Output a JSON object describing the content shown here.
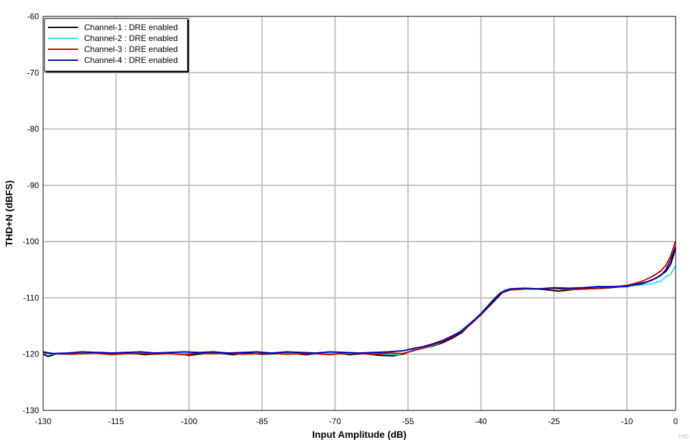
{
  "chart_data": {
    "type": "line",
    "title": "",
    "xlabel": "Input Amplitude (dB)",
    "ylabel": "THD+N (dBFS)",
    "xlim": [
      -130,
      0
    ],
    "ylim": [
      -130,
      -60
    ],
    "xticks": [
      -130,
      -115,
      -100,
      -85,
      -70,
      -55,
      -40,
      -25,
      -10,
      0
    ],
    "yticks": [
      -60,
      -70,
      -80,
      -90,
      -100,
      -110,
      -120,
      -130
    ],
    "grid": true,
    "legend_position": "top-left",
    "watermark": "THD",
    "series": [
      {
        "name": "Channel-1 : DRE enabled",
        "color": "#000000",
        "points": [
          [
            -130,
            -120.0
          ],
          [
            -129,
            -120.4
          ],
          [
            -127,
            -119.9
          ],
          [
            -124,
            -120.0
          ],
          [
            -121,
            -119.8
          ],
          [
            -118,
            -119.7
          ],
          [
            -115,
            -119.9
          ],
          [
            -112,
            -119.8
          ],
          [
            -109,
            -120.1
          ],
          [
            -106,
            -119.9
          ],
          [
            -103,
            -119.8
          ],
          [
            -100,
            -120.2
          ],
          [
            -97,
            -119.9
          ],
          [
            -94,
            -119.8
          ],
          [
            -91,
            -120.1
          ],
          [
            -88,
            -119.8
          ],
          [
            -85,
            -120.0
          ],
          [
            -82,
            -119.9
          ],
          [
            -79,
            -119.8
          ],
          [
            -76,
            -120.1
          ],
          [
            -73,
            -119.9
          ],
          [
            -70,
            -119.8
          ],
          [
            -67,
            -120.1
          ],
          [
            -64,
            -119.9
          ],
          [
            -61,
            -120.2
          ],
          [
            -58,
            -120.3
          ],
          [
            -56,
            -120.0
          ],
          [
            -54,
            -119.3
          ],
          [
            -52,
            -119.0
          ],
          [
            -50,
            -118.6
          ],
          [
            -48,
            -118.0
          ],
          [
            -46,
            -117.2
          ],
          [
            -44,
            -116.2
          ],
          [
            -42,
            -114.5
          ],
          [
            -40,
            -113.0
          ],
          [
            -38,
            -111.2
          ],
          [
            -36,
            -109.4
          ],
          [
            -35,
            -108.6
          ],
          [
            -33,
            -108.5
          ],
          [
            -30,
            -108.4
          ],
          [
            -27,
            -108.5
          ],
          [
            -24,
            -108.8
          ],
          [
            -21,
            -108.5
          ],
          [
            -18,
            -108.4
          ],
          [
            -15,
            -108.3
          ],
          [
            -12,
            -108.1
          ],
          [
            -10,
            -108.0
          ],
          [
            -8,
            -107.6
          ],
          [
            -6,
            -107.2
          ],
          [
            -4,
            -106.5
          ],
          [
            -2,
            -105.3
          ],
          [
            -1,
            -104.0
          ],
          [
            0,
            -101.2
          ]
        ]
      },
      {
        "name": "Channel-2 : DRE enabled",
        "color": "#33e0e0",
        "points": [
          [
            -130,
            -119.8
          ],
          [
            -128,
            -120.0
          ],
          [
            -125,
            -119.9
          ],
          [
            -122,
            -119.8
          ],
          [
            -119,
            -119.7
          ],
          [
            -116,
            -119.8
          ],
          [
            -113,
            -119.9
          ],
          [
            -110,
            -119.8
          ],
          [
            -107,
            -119.9
          ],
          [
            -104,
            -119.8
          ],
          [
            -101,
            -119.9
          ],
          [
            -98,
            -119.8
          ],
          [
            -95,
            -119.9
          ],
          [
            -92,
            -119.8
          ],
          [
            -89,
            -120.0
          ],
          [
            -86,
            -119.9
          ],
          [
            -83,
            -119.8
          ],
          [
            -80,
            -119.9
          ],
          [
            -77,
            -119.8
          ],
          [
            -74,
            -120.0
          ],
          [
            -71,
            -119.8
          ],
          [
            -68,
            -119.9
          ],
          [
            -65,
            -119.9
          ],
          [
            -62,
            -119.8
          ],
          [
            -59,
            -120.0
          ],
          [
            -57,
            -120.1
          ],
          [
            -55,
            -119.6
          ],
          [
            -53,
            -119.2
          ],
          [
            -51,
            -118.8
          ],
          [
            -49,
            -118.2
          ],
          [
            -47,
            -117.3
          ],
          [
            -45,
            -116.4
          ],
          [
            -43,
            -115.0
          ],
          [
            -41,
            -113.6
          ],
          [
            -39,
            -111.8
          ],
          [
            -37,
            -109.8
          ],
          [
            -35,
            -108.5
          ],
          [
            -32,
            -108.4
          ],
          [
            -29,
            -108.5
          ],
          [
            -26,
            -108.3
          ],
          [
            -23,
            -108.5
          ],
          [
            -20,
            -108.4
          ],
          [
            -17,
            -108.2
          ],
          [
            -14,
            -108.1
          ],
          [
            -11,
            -108.0
          ],
          [
            -8,
            -107.8
          ],
          [
            -5,
            -107.5
          ],
          [
            -3,
            -107.0
          ],
          [
            -2,
            -106.2
          ],
          [
            -1,
            -105.8
          ],
          [
            0,
            -104.3
          ]
        ]
      },
      {
        "name": "Channel-3 : DRE enabled",
        "color": "#cc0000",
        "points": [
          [
            -130,
            -119.7
          ],
          [
            -128,
            -119.9
          ],
          [
            -125,
            -120.0
          ],
          [
            -122,
            -119.9
          ],
          [
            -119,
            -119.8
          ],
          [
            -116,
            -120.1
          ],
          [
            -113,
            -119.9
          ],
          [
            -110,
            -119.9
          ],
          [
            -107,
            -120.0
          ],
          [
            -104,
            -119.9
          ],
          [
            -101,
            -120.1
          ],
          [
            -98,
            -119.8
          ],
          [
            -95,
            -119.9
          ],
          [
            -92,
            -119.8
          ],
          [
            -89,
            -120.0
          ],
          [
            -86,
            -119.9
          ],
          [
            -83,
            -119.8
          ],
          [
            -80,
            -120.0
          ],
          [
            -77,
            -119.9
          ],
          [
            -74,
            -119.9
          ],
          [
            -71,
            -120.1
          ],
          [
            -68,
            -119.8
          ],
          [
            -65,
            -119.9
          ],
          [
            -62,
            -120.0
          ],
          [
            -59,
            -119.8
          ],
          [
            -56,
            -119.9
          ],
          [
            -54,
            -119.4
          ],
          [
            -52,
            -118.9
          ],
          [
            -50,
            -118.4
          ],
          [
            -48,
            -117.8
          ],
          [
            -46,
            -117.0
          ],
          [
            -44,
            -116.0
          ],
          [
            -42,
            -114.6
          ],
          [
            -40,
            -113.0
          ],
          [
            -38,
            -111.0
          ],
          [
            -36,
            -109.2
          ],
          [
            -34,
            -108.6
          ],
          [
            -31,
            -108.4
          ],
          [
            -28,
            -108.4
          ],
          [
            -25,
            -108.3
          ],
          [
            -22,
            -108.5
          ],
          [
            -19,
            -108.4
          ],
          [
            -16,
            -108.3
          ],
          [
            -13,
            -108.1
          ],
          [
            -10,
            -107.8
          ],
          [
            -7,
            -107.1
          ],
          [
            -5,
            -106.3
          ],
          [
            -3,
            -105.2
          ],
          [
            -2,
            -104.2
          ],
          [
            -1,
            -102.5
          ],
          [
            0,
            -99.9
          ]
        ]
      },
      {
        "name": "Channel-4 : DRE enabled",
        "color": "#0000aa",
        "points": [
          [
            -130,
            -119.6
          ],
          [
            -128,
            -119.9
          ],
          [
            -125,
            -119.8
          ],
          [
            -122,
            -119.6
          ],
          [
            -119,
            -119.7
          ],
          [
            -116,
            -119.8
          ],
          [
            -113,
            -119.7
          ],
          [
            -110,
            -119.6
          ],
          [
            -107,
            -119.8
          ],
          [
            -104,
            -119.7
          ],
          [
            -101,
            -119.6
          ],
          [
            -98,
            -119.7
          ],
          [
            -95,
            -119.6
          ],
          [
            -92,
            -119.8
          ],
          [
            -89,
            -119.7
          ],
          [
            -86,
            -119.6
          ],
          [
            -83,
            -119.8
          ],
          [
            -80,
            -119.6
          ],
          [
            -77,
            -119.7
          ],
          [
            -74,
            -119.8
          ],
          [
            -71,
            -119.6
          ],
          [
            -68,
            -119.7
          ],
          [
            -65,
            -119.8
          ],
          [
            -62,
            -119.7
          ],
          [
            -59,
            -119.6
          ],
          [
            -56,
            -119.4
          ],
          [
            -54,
            -119.0
          ],
          [
            -52,
            -118.7
          ],
          [
            -50,
            -118.2
          ],
          [
            -48,
            -117.6
          ],
          [
            -46,
            -116.8
          ],
          [
            -44,
            -115.9
          ],
          [
            -42,
            -114.4
          ],
          [
            -40,
            -112.8
          ],
          [
            -38,
            -110.9
          ],
          [
            -36,
            -109.1
          ],
          [
            -34,
            -108.4
          ],
          [
            -31,
            -108.3
          ],
          [
            -28,
            -108.4
          ],
          [
            -25,
            -108.2
          ],
          [
            -22,
            -108.3
          ],
          [
            -19,
            -108.2
          ],
          [
            -16,
            -108.0
          ],
          [
            -13,
            -108.0
          ],
          [
            -10,
            -107.9
          ],
          [
            -7,
            -107.5
          ],
          [
            -5,
            -106.9
          ],
          [
            -3,
            -106.0
          ],
          [
            -2,
            -105.0
          ],
          [
            -1,
            -103.2
          ],
          [
            0,
            -100.9
          ]
        ]
      }
    ]
  }
}
